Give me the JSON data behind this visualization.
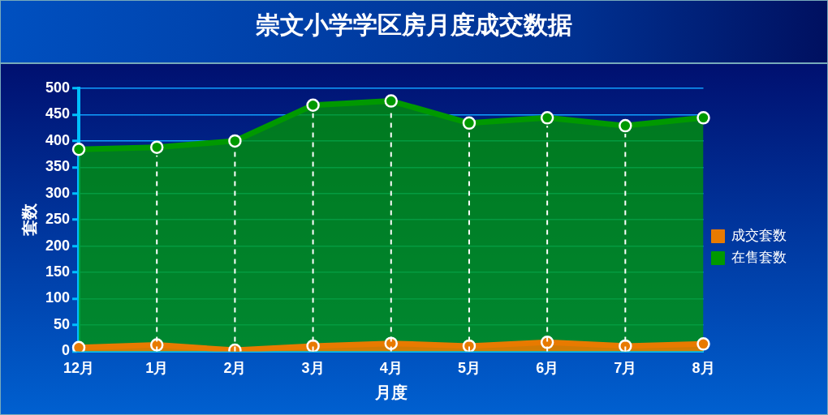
{
  "chart_data": {
    "type": "area",
    "title": "崇文小学学区房月度成交数据",
    "xlabel": "月度",
    "ylabel": "套数",
    "categories": [
      "12月",
      "1月",
      "2月",
      "3月",
      "4月",
      "5月",
      "6月",
      "7月",
      "8月"
    ],
    "series": [
      {
        "name": "成交套数",
        "color": "#e87a00",
        "values": [
          7,
          12,
          2,
          10,
          15,
          10,
          17,
          10,
          14
        ]
      },
      {
        "name": "在售套数",
        "color": "#009900",
        "values": [
          384,
          388,
          400,
          468,
          476,
          434,
          444,
          429,
          444
        ]
      }
    ],
    "ylim": [
      0,
      500
    ],
    "yticks": [
      0,
      50,
      100,
      150,
      200,
      250,
      300,
      350,
      400,
      450,
      500
    ],
    "grid": true,
    "legend": "right",
    "marker": "circle",
    "line_style": "solid"
  }
}
